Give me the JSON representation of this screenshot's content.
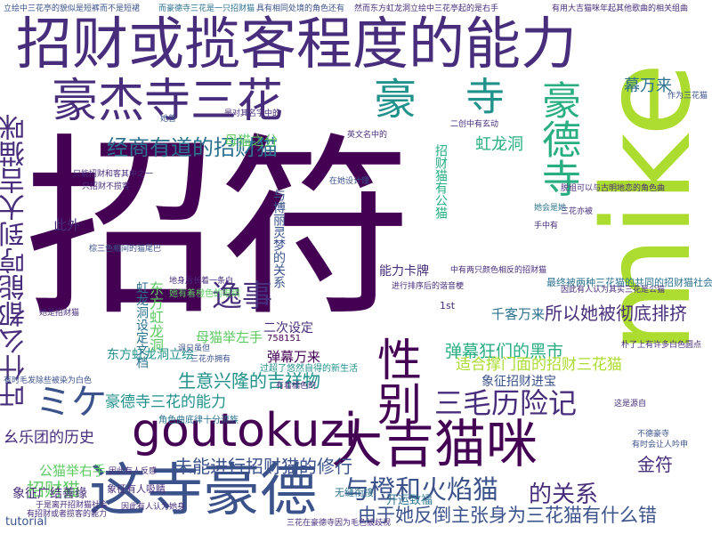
{
  "wordcloud": {
    "words": [
      {
        "text": "招符",
        "color": "c1"
      },
      {
        "text": "mike",
        "color": "c8"
      },
      {
        "text": "招财或揽客程度的能力",
        "color": "c2"
      },
      {
        "text": "大吉猫咪",
        "color": "c1"
      },
      {
        "text": "goutokuzi",
        "color": "c1"
      },
      {
        "text": "这寺豪德",
        "color": "c3"
      },
      {
        "text": "豪杰寺三花",
        "color": "c2"
      },
      {
        "text": "豪德寺",
        "color": "c6"
      },
      {
        "text": "性别",
        "color": "c1"
      },
      {
        "text": "豪",
        "color": "c5"
      },
      {
        "text": "寺",
        "color": "c5"
      },
      {
        "text": "ミケ",
        "color": "c3"
      },
      {
        "text": "吁什么都能哼到大吉猫咪",
        "color": "c2"
      },
      {
        "text": "逸事",
        "color": "c2"
      },
      {
        "text": "与橙和火焰猫",
        "color": "c3"
      },
      {
        "text": "由于她反倒主张身为三花猫有什么错",
        "color": "c3"
      },
      {
        "text": "的关系",
        "color": "c2"
      },
      {
        "text": "经商有道的招财猫",
        "color": "c4"
      },
      {
        "text": "三毛历险记",
        "color": "c2"
      },
      {
        "text": "未能进行招财猫的修行",
        "color": "c3"
      },
      {
        "text": "豪德寺三花的能力",
        "color": "c5"
      },
      {
        "text": "生意兴隆的吉祥物",
        "color": "c5"
      },
      {
        "text": "弹幕狂们的黑市",
        "color": "c6"
      },
      {
        "text": "适合撑门面的招财三花猫",
        "color": "c8"
      },
      {
        "text": "所以她被彻底排挤",
        "color": "c2"
      },
      {
        "text": "千客万来",
        "color": "c4"
      },
      {
        "text": "幕万来",
        "color": "c4"
      },
      {
        "text": "虹龙洞",
        "color": "c6"
      },
      {
        "text": "金符",
        "color": "c2"
      },
      {
        "text": "招财猫",
        "color": "c7"
      },
      {
        "text": "公猫举右手",
        "color": "c7"
      },
      {
        "text": "母猫举左手",
        "color": "c7"
      },
      {
        "text": "母猫之分",
        "color": "c7"
      },
      {
        "text": "弹幕万来",
        "color": "c1"
      },
      {
        "text": "二次设定",
        "color": "c2"
      },
      {
        "text": "能力卡牌",
        "color": "c2"
      },
      {
        "text": "象征广结善缘",
        "color": "c2"
      },
      {
        "text": "象征招财进宝",
        "color": "c3"
      },
      {
        "text": "幺乐团的历史",
        "color": "c2"
      },
      {
        "text": "此外",
        "color": "c2"
      },
      {
        "text": "最终被两种三花猫的共同的招财猫社会",
        "color": "c4"
      },
      {
        "text": "东方虹龙洞",
        "color": "c7"
      },
      {
        "text": "东方虹龙洞立绘",
        "color": "c5"
      },
      {
        "text": "虹龙洞设定文档",
        "color": "c4"
      },
      {
        "text": "与博丽灵梦的关系",
        "color": "c3"
      },
      {
        "text": "tutorial",
        "color": "c3"
      },
      {
        "text": "1st",
        "color": "c2"
      },
      {
        "text": "758151",
        "color": "c1"
      },
      {
        "text": "开运致福",
        "color": "c4"
      },
      {
        "text": "无缝衔接",
        "color": "c4"
      },
      {
        "text": "象征有人吸睛",
        "color": "c2"
      },
      {
        "text": "招财猫有公猫",
        "color": "c6"
      },
      {
        "text": "立绘中三花亭的貌似是短裤而不是短裙",
        "color": "c3"
      },
      {
        "text": "而豪德寺三花是一只招财猫",
        "color": "c4"
      },
      {
        "text": "具有相同处境的角色还有",
        "color": "c3"
      },
      {
        "text": "然而东方虹龙洞立绘中三花亭起的是右手",
        "color": "c2"
      },
      {
        "text": "有用大吉猫咪年起其他歌曲的相关组曲",
        "color": "c2"
      },
      {
        "text": "是对其名字中的",
        "color": "c2"
      },
      {
        "text": "只能招财和客其中之一",
        "color": "c2"
      },
      {
        "text": "只招财不揽客",
        "color": "c2"
      },
      {
        "text": "棕三色相间的猫尾巴",
        "color": "c3"
      },
      {
        "text": "地身后长着一条白",
        "color": "c2"
      },
      {
        "text": "她是招财猫",
        "color": "c2"
      },
      {
        "text": "她有着橙色的眼睛",
        "color": "c7"
      },
      {
        "text": "英文名中的",
        "color": "c2"
      },
      {
        "text": "二创中有玄动",
        "color": "c2"
      },
      {
        "text": "朴了上有许多白色圆点",
        "color": "c2"
      },
      {
        "text": "因此有人认为其实三花是公猫",
        "color": "c2"
      },
      {
        "text": "进行排序后的谐音梗",
        "color": "c2"
      },
      {
        "text": "作为三花猫",
        "color": "c3"
      },
      {
        "text": "不德豪寺",
        "color": "c3"
      },
      {
        "text": "有时会让人吟申",
        "color": "c3"
      },
      {
        "text": "脱组可以与古明地恋的角色曲",
        "color": "c2"
      },
      {
        "text": "因此有人反感",
        "color": "c2"
      },
      {
        "text": "三花亦被",
        "color": "c2"
      },
      {
        "text": "过超了悠然自得的新生活",
        "color": "c5"
      },
      {
        "text": "角色曲底律十分流族",
        "color": "c4"
      },
      {
        "text": "讽日虽但",
        "color": "c3"
      },
      {
        "text": "有着橘色的",
        "color": "c2"
      },
      {
        "text": "她曾",
        "color": "c3"
      },
      {
        "text": "这是源自",
        "color": "c2"
      },
      {
        "text": "三花亦拥有",
        "color": "c3"
      },
      {
        "text": "有时毛发除些被染为白色",
        "color": "c3"
      },
      {
        "text": "中有两只颜色相反的招财猫",
        "color": "c2"
      },
      {
        "text": "三花在豪德寺因为毛色被歧视",
        "color": "c2"
      },
      {
        "text": "于是离开招财猫社会",
        "color": "c2"
      },
      {
        "text": "有招财或者揽客的能力",
        "color": "c2"
      },
      {
        "text": "她会是她",
        "color": "c4"
      },
      {
        "text": "在她设计理",
        "color": "c3"
      },
      {
        "text": "手中有",
        "color": "c2"
      },
      {
        "text": "因此有人认为她身",
        "color": "c2"
      }
    ]
  }
}
